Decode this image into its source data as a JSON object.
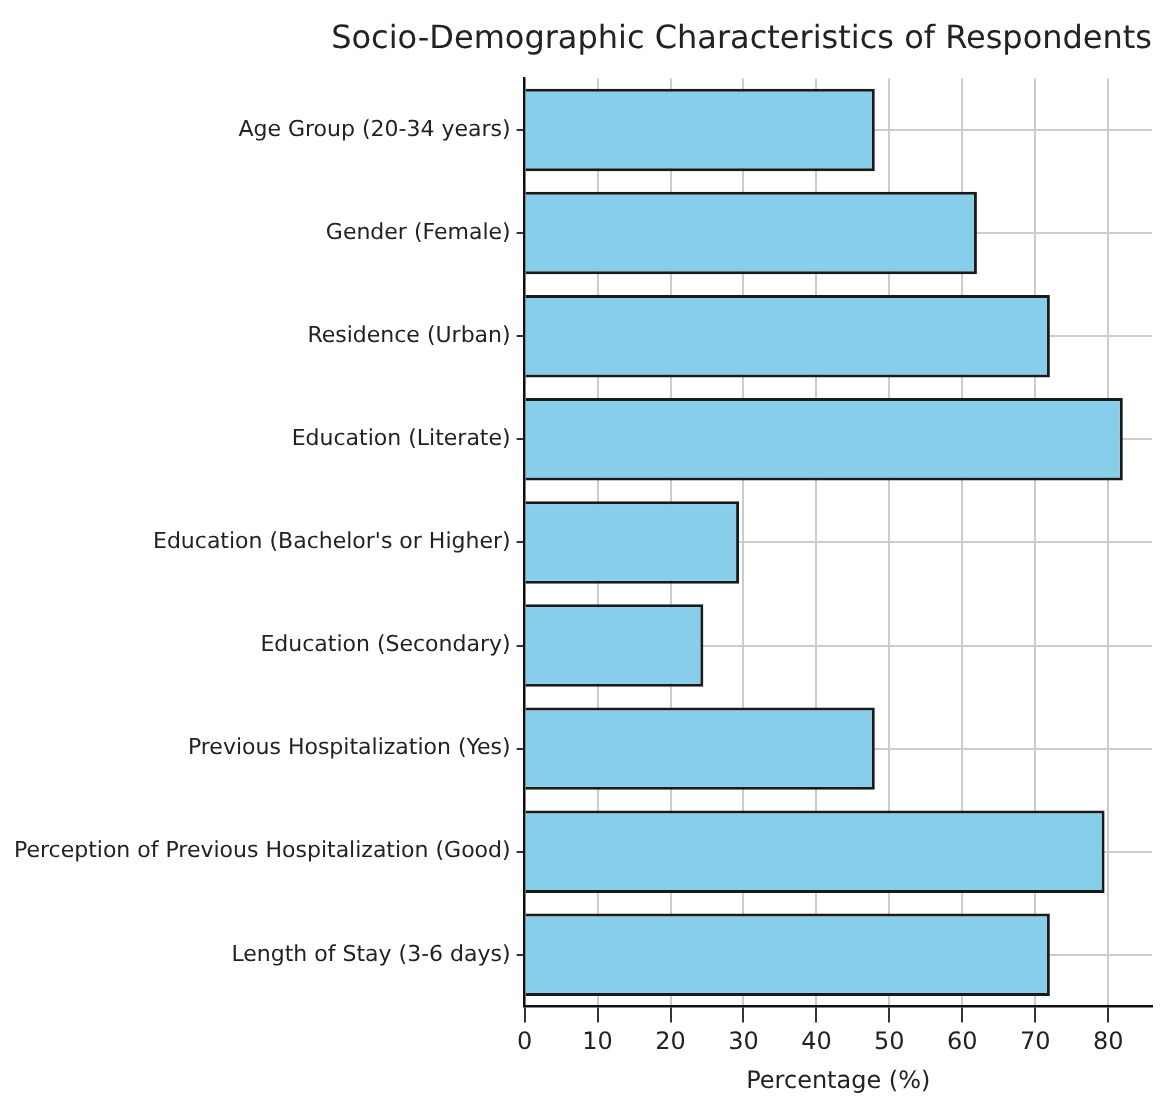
{
  "chart_data": {
    "type": "bar",
    "orientation": "horizontal",
    "title": "Socio-Demographic Characteristics of Respondents",
    "xlabel": "Percentage (%)",
    "categories": [
      "Age Group (20-34 years)",
      "Gender (Female)",
      "Residence (Urban)",
      "Education (Literate)",
      "Education (Bachelor's or Higher)",
      "Education (Secondary)",
      "Previous Hospitalization (Yes)",
      "Perception of Previous Hospitalization (Good)",
      "Length of Stay (3-6 days)"
    ],
    "values": [
      48,
      62,
      72,
      82,
      29.4,
      24.5,
      48,
      79.5,
      72
    ],
    "color": "#87ceeb",
    "xlim": [
      0,
      86
    ],
    "xticks": [
      0,
      10,
      20,
      30,
      40,
      50,
      60,
      70,
      80
    ],
    "grid": true,
    "legend": false
  }
}
